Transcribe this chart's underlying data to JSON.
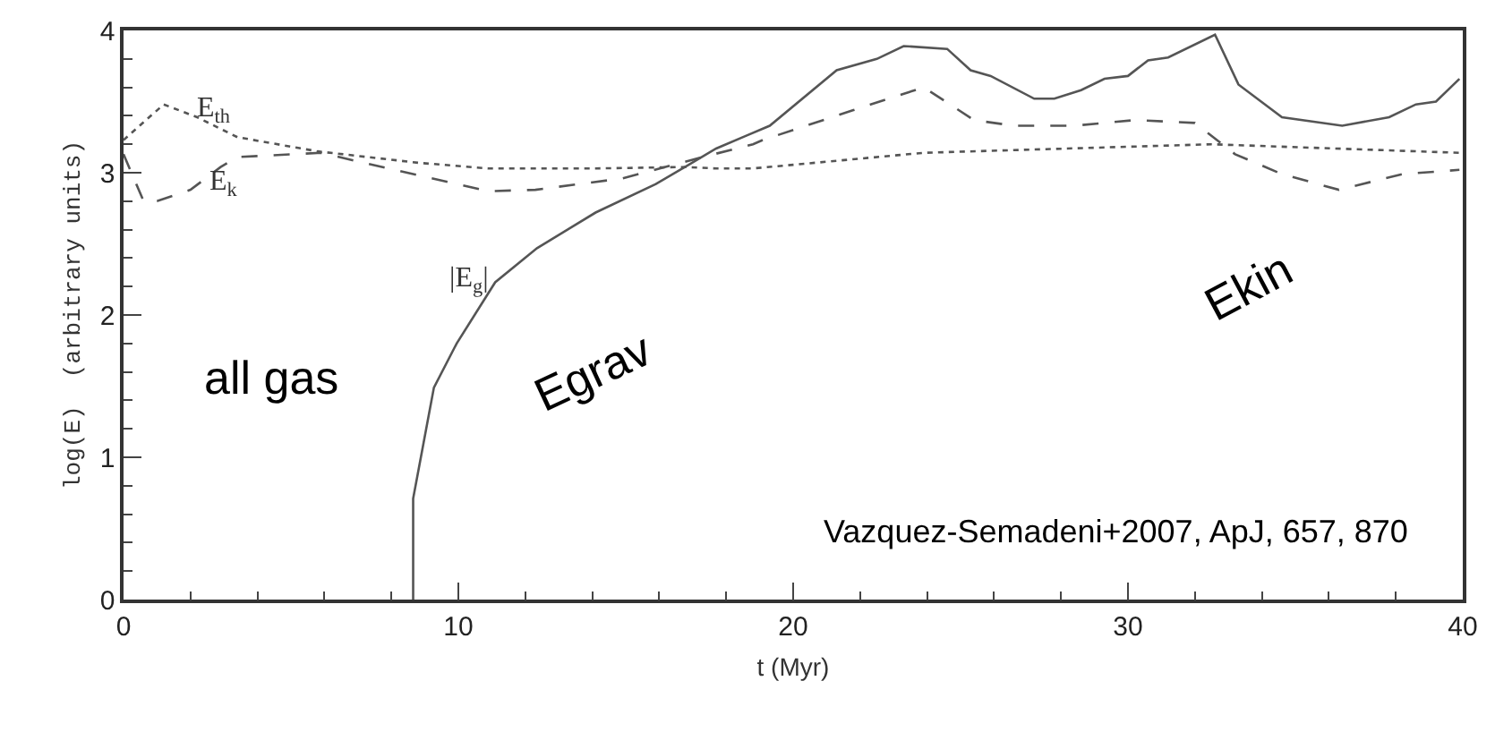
{
  "chart_data": {
    "type": "line",
    "xlabel": "t (Myr)",
    "ylabel": "log(E)  (arbitrary units)",
    "xlim": [
      0,
      40
    ],
    "ylim": [
      0,
      4
    ],
    "xticks": [
      0,
      {
        "value": 2,
        "label": null
      },
      {
        "value": 4,
        "label": null
      },
      {
        "value": 6,
        "label": null
      },
      {
        "value": 8,
        "label": null
      },
      10,
      {
        "value": 12,
        "label": null
      },
      {
        "value": 14,
        "label": null
      },
      {
        "value": 16,
        "label": null
      },
      {
        "value": 18,
        "label": null
      },
      20,
      {
        "value": 22,
        "label": null
      },
      {
        "value": 24,
        "label": null
      },
      {
        "value": 26,
        "label": null
      },
      {
        "value": 28,
        "label": null
      },
      30,
      {
        "value": 32,
        "label": null
      },
      {
        "value": 34,
        "label": null
      },
      {
        "value": 36,
        "label": null
      },
      {
        "value": 38,
        "label": null
      },
      40
    ],
    "yticks": [
      0,
      {
        "value": 0.2,
        "label": null
      },
      {
        "value": 0.4,
        "label": null
      },
      {
        "value": 0.6,
        "label": null
      },
      {
        "value": 0.8,
        "label": null
      },
      1,
      {
        "value": 1.2,
        "label": null
      },
      {
        "value": 1.4,
        "label": null
      },
      {
        "value": 1.6,
        "label": null
      },
      {
        "value": 1.8,
        "label": null
      },
      2,
      {
        "value": 2.2,
        "label": null
      },
      {
        "value": 2.4,
        "label": null
      },
      {
        "value": 2.6,
        "label": null
      },
      {
        "value": 2.8,
        "label": null
      },
      3,
      {
        "value": 3.2,
        "label": null
      },
      {
        "value": 3.4,
        "label": null
      },
      {
        "value": 3.6,
        "label": null
      },
      {
        "value": 3.8,
        "label": null
      },
      4
    ],
    "marker": "none",
    "series": [
      {
        "color": "#555555",
        "line_style": "dotted",
        "x": [
          0,
          1.2,
          2.2,
          3.4,
          5.8,
          8.8,
          10.9,
          14.1,
          16.8,
          17.7,
          18.8,
          23.9,
          32.5,
          39.9
        ],
        "values": [
          3.23,
          3.48,
          3.39,
          3.25,
          3.15,
          3.07,
          3.03,
          3.03,
          3.04,
          3.03,
          3.03,
          3.14,
          3.2,
          3.14
        ]
      },
      {
        "color": "#555555",
        "line_style": "dashed",
        "x": [
          0,
          0.6,
          1.0,
          2.0,
          2.9,
          3.4,
          5.9,
          7.9,
          10.9,
          12.3,
          14.9,
          17.3,
          18.8,
          19.1,
          21.8,
          23.9,
          25.4,
          26.6,
          28.4,
          30.2,
          32.0,
          33.2,
          34.6,
          36.3,
          38.2,
          39.9
        ],
        "values": [
          3.13,
          2.8,
          2.8,
          2.88,
          3.04,
          3.11,
          3.14,
          3.03,
          2.87,
          2.88,
          2.96,
          3.11,
          3.2,
          3.23,
          3.44,
          3.6,
          3.37,
          3.33,
          3.33,
          3.37,
          3.35,
          3.13,
          2.99,
          2.88,
          2.99,
          3.02
        ]
      },
      {
        "color": "#555555",
        "line_style": "solid",
        "x": [
          8.65,
          8.65,
          9.27,
          9.95,
          11.1,
          12.35,
          14.1,
          15.9,
          17.7,
          18.6,
          19.3,
          21.3,
          22.5,
          23.3,
          24.6,
          25.3,
          25.9,
          27.2,
          27.8,
          28.6,
          29.3,
          30.0,
          30.6,
          31.2,
          32.6,
          33.3,
          34.6,
          36.4,
          37.8,
          38.6,
          39.2,
          39.9
        ],
        "values": [
          0,
          0.71,
          1.49,
          1.8,
          2.23,
          2.47,
          2.72,
          2.92,
          3.17,
          3.26,
          3.33,
          3.72,
          3.8,
          3.89,
          3.87,
          3.72,
          3.68,
          3.52,
          3.52,
          3.58,
          3.66,
          3.68,
          3.79,
          3.81,
          3.97,
          3.62,
          3.39,
          3.33,
          3.39,
          3.48,
          3.5,
          3.66
        ]
      }
    ],
    "annotations": [
      "E$_{th}$",
      "E$_{k}$",
      "|E$_{g}$|",
      "all gas",
      "Egrav",
      "Ekin",
      "Vazquez-Semadeni+2007, ApJ, 657, 870"
    ]
  }
}
